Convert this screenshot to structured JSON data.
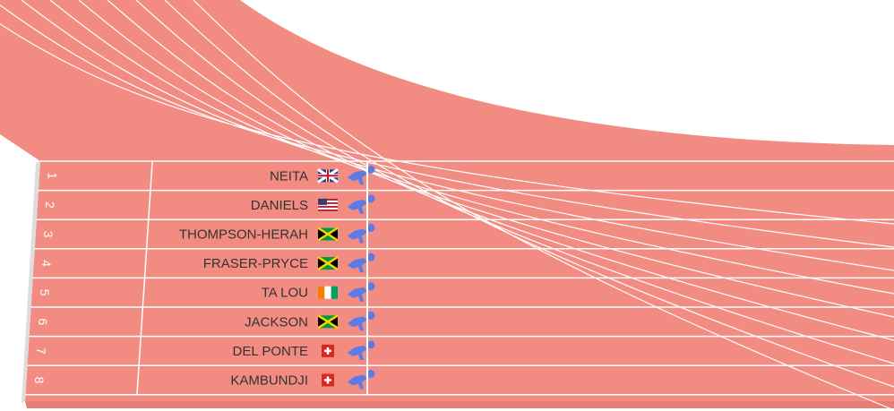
{
  "lanes": [
    {
      "number": 1,
      "name": "NEITA"
    },
    {
      "number": 2,
      "name": "DANIELS"
    },
    {
      "number": 3,
      "name": "THOMPSON-HERAH"
    },
    {
      "number": 4,
      "name": "FRASER-PRYCE"
    },
    {
      "number": 5,
      "name": "TA LOU"
    },
    {
      "number": 6,
      "name": "JACKSON"
    },
    {
      "number": 7,
      "name": "DEL PONTE"
    },
    {
      "number": 8,
      "name": "KAMBUNDJI"
    }
  ]
}
